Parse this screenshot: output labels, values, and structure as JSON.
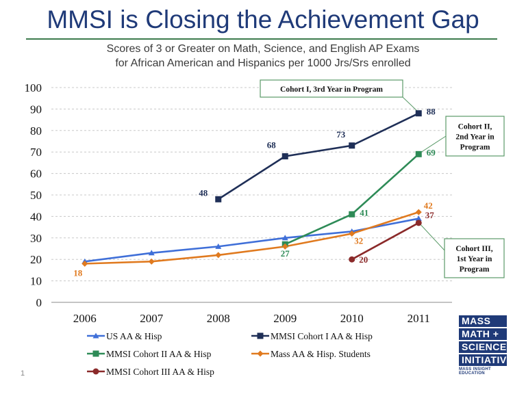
{
  "header": {
    "title": "MMSI is Closing the Achievement Gap",
    "subtitle_line1": "Scores of 3 or Greater on Math, Science, and English AP Exams",
    "subtitle_line2": "for African American and Hispanics per 1000 Jrs/Srs enrolled"
  },
  "page_number": "1",
  "logo": {
    "line1": "MASS",
    "line2": "MATH +",
    "line3": "SCIENCE",
    "line4": "INITIATIVE",
    "tagline": "MASS INSIGHT EDUCATION"
  },
  "callouts": [
    {
      "id": "cohort1",
      "lines": [
        "Cohort I, 3rd Year in Program"
      ]
    },
    {
      "id": "cohort2",
      "lines": [
        "Cohort II,",
        "2nd Year in",
        "Program"
      ]
    },
    {
      "id": "cohort3",
      "lines": [
        "Cohort III,",
        "1st Year in",
        "Program"
      ]
    }
  ],
  "chart_data": {
    "type": "line",
    "categories": [
      "2006",
      "2007",
      "2008",
      "2009",
      "2010",
      "2011"
    ],
    "ylim": [
      0,
      100
    ],
    "yticks": [
      0,
      10,
      20,
      30,
      40,
      50,
      60,
      70,
      80,
      90,
      100
    ],
    "grid": true,
    "legend_position": "bottom",
    "series": [
      {
        "name": "US AA & Hisp",
        "color": "#3f6fd8",
        "marker": "triangle",
        "values": [
          19,
          23,
          26,
          30,
          33,
          39
        ],
        "labels": [
          null,
          null,
          null,
          null,
          null,
          null
        ]
      },
      {
        "name": "MMSI Cohort I AA & Hisp",
        "color": "#1f2f57",
        "marker": "square",
        "values": [
          null,
          null,
          48,
          68,
          73,
          88
        ],
        "labels": [
          null,
          null,
          "48",
          "68",
          "73",
          "88"
        ]
      },
      {
        "name": "MMSI Cohort II  AA & Hisp",
        "color": "#2e8b57",
        "marker": "square",
        "values": [
          null,
          null,
          null,
          27,
          41,
          69
        ],
        "labels": [
          null,
          null,
          null,
          "27",
          "41",
          "69"
        ]
      },
      {
        "name": "Mass AA & Hisp. Students",
        "color": "#e07a1f",
        "marker": "diamond",
        "values": [
          18,
          19,
          22,
          26,
          32,
          42
        ],
        "labels": [
          "18",
          null,
          null,
          null,
          "32",
          "42"
        ]
      },
      {
        "name": "MMSI Cohort III AA & Hisp",
        "color": "#8b2a2a",
        "marker": "circle",
        "values": [
          null,
          null,
          null,
          null,
          20,
          37
        ],
        "labels": [
          null,
          null,
          null,
          null,
          "20",
          "37"
        ]
      }
    ]
  }
}
